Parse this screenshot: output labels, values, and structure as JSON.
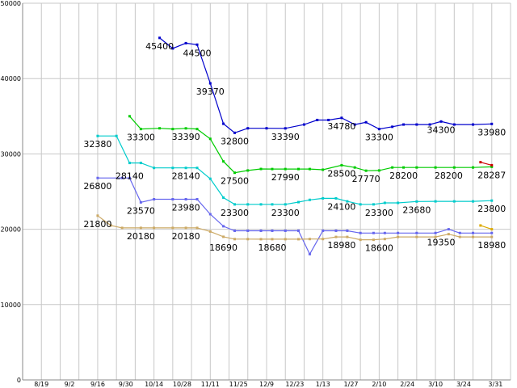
{
  "chart_data": {
    "type": "line",
    "title": "",
    "xlabel": "",
    "ylabel": "",
    "ylim": [
      0,
      50000
    ],
    "yticks": [
      0,
      10000,
      20000,
      30000,
      40000,
      50000
    ],
    "grid": true,
    "x_ticks": [
      "8/19",
      "9/2",
      "9/16",
      "9/30",
      "10/14",
      "10/28",
      "11/11",
      "11/25",
      "12/9",
      "12/23",
      "1/13",
      "1/27",
      "2/10",
      "2/24",
      "3/10",
      "3/24",
      "3/31"
    ],
    "series": [
      {
        "color": "#0000cc",
        "points": [
          [
            7.3,
            45400
          ],
          [
            8.0,
            44000
          ],
          [
            8.7,
            44700
          ],
          [
            9.3,
            44500
          ],
          [
            10.0,
            39370
          ],
          [
            10.7,
            34000
          ],
          [
            11.3,
            32800
          ],
          [
            12.0,
            33400
          ],
          [
            13.0,
            33400
          ],
          [
            14.0,
            33390
          ],
          [
            15.0,
            33900
          ],
          [
            15.7,
            34500
          ],
          [
            16.3,
            34500
          ],
          [
            17.0,
            34780
          ],
          [
            17.7,
            33900
          ],
          [
            18.3,
            34200
          ],
          [
            19.0,
            33300
          ],
          [
            19.7,
            33600
          ],
          [
            20.3,
            33900
          ],
          [
            21.0,
            33900
          ],
          [
            21.7,
            33900
          ],
          [
            22.3,
            34300
          ],
          [
            23.0,
            33900
          ],
          [
            24.0,
            33900
          ],
          [
            25.0,
            33980
          ]
        ]
      },
      {
        "color": "#00cc00",
        "points": [
          [
            5.7,
            35000
          ],
          [
            6.3,
            33300
          ],
          [
            7.3,
            33400
          ],
          [
            8.0,
            33300
          ],
          [
            8.7,
            33390
          ],
          [
            9.3,
            33300
          ],
          [
            10.0,
            32000
          ],
          [
            10.7,
            29000
          ],
          [
            11.3,
            27500
          ],
          [
            12.0,
            27800
          ],
          [
            12.7,
            28000
          ],
          [
            13.3,
            27990
          ],
          [
            14.0,
            27990
          ],
          [
            14.7,
            27990
          ],
          [
            15.3,
            27990
          ],
          [
            16.0,
            27900
          ],
          [
            17.0,
            28500
          ],
          [
            17.7,
            28200
          ],
          [
            18.3,
            27770
          ],
          [
            19.0,
            27800
          ],
          [
            19.7,
            28200
          ],
          [
            20.3,
            28200
          ],
          [
            21.0,
            28200
          ],
          [
            22.0,
            28200
          ],
          [
            23.0,
            28200
          ],
          [
            24.0,
            28200
          ],
          [
            25.0,
            28287
          ]
        ]
      },
      {
        "color": "#00cccc",
        "points": [
          [
            4.0,
            32380
          ],
          [
            5.0,
            32380
          ],
          [
            5.7,
            28800
          ],
          [
            6.3,
            28800
          ],
          [
            7.0,
            28140
          ],
          [
            8.0,
            28140
          ],
          [
            8.7,
            28140
          ],
          [
            9.3,
            28140
          ],
          [
            10.0,
            26700
          ],
          [
            10.7,
            24200
          ],
          [
            11.3,
            23300
          ],
          [
            12.0,
            23300
          ],
          [
            12.7,
            23300
          ],
          [
            13.3,
            23300
          ],
          [
            14.0,
            23300
          ],
          [
            14.7,
            23600
          ],
          [
            15.3,
            23900
          ],
          [
            16.0,
            24100
          ],
          [
            16.7,
            24100
          ],
          [
            17.3,
            23700
          ],
          [
            18.0,
            23300
          ],
          [
            18.7,
            23300
          ],
          [
            19.3,
            23500
          ],
          [
            20.0,
            23500
          ],
          [
            21.0,
            23680
          ],
          [
            22.0,
            23700
          ],
          [
            23.0,
            23700
          ],
          [
            24.0,
            23700
          ],
          [
            25.0,
            23800
          ]
        ]
      },
      {
        "color": "#6666ee",
        "points": [
          [
            4.0,
            26800
          ],
          [
            5.3,
            26800
          ],
          [
            5.7,
            26800
          ],
          [
            6.3,
            23570
          ],
          [
            7.0,
            23980
          ],
          [
            8.0,
            23980
          ],
          [
            8.7,
            23980
          ],
          [
            9.3,
            23980
          ],
          [
            10.0,
            22000
          ],
          [
            10.7,
            20400
          ],
          [
            11.3,
            19800
          ],
          [
            12.0,
            19800
          ],
          [
            12.7,
            19800
          ],
          [
            13.3,
            19800
          ],
          [
            14.0,
            19800
          ],
          [
            14.7,
            19800
          ],
          [
            15.3,
            16700
          ],
          [
            16.0,
            19800
          ],
          [
            16.7,
            19800
          ],
          [
            17.3,
            19800
          ],
          [
            18.0,
            19500
          ],
          [
            18.7,
            19500
          ],
          [
            19.3,
            19500
          ],
          [
            20.0,
            19500
          ],
          [
            21.0,
            19500
          ],
          [
            22.0,
            19500
          ],
          [
            22.7,
            20000
          ],
          [
            23.3,
            19500
          ],
          [
            24.0,
            19500
          ],
          [
            25.0,
            19500
          ]
        ]
      },
      {
        "color": "#ccaa66",
        "points": [
          [
            4.0,
            21800
          ],
          [
            4.7,
            20500
          ],
          [
            5.3,
            20180
          ],
          [
            6.3,
            20180
          ],
          [
            7.0,
            20180
          ],
          [
            8.0,
            20180
          ],
          [
            8.7,
            20180
          ],
          [
            9.3,
            20180
          ],
          [
            10.0,
            19700
          ],
          [
            10.7,
            19000
          ],
          [
            11.3,
            18690
          ],
          [
            12.0,
            18690
          ],
          [
            12.7,
            18680
          ],
          [
            13.3,
            18680
          ],
          [
            14.0,
            18680
          ],
          [
            14.7,
            18680
          ],
          [
            15.3,
            18700
          ],
          [
            16.0,
            18700
          ],
          [
            16.7,
            18980
          ],
          [
            17.3,
            18980
          ],
          [
            18.0,
            18600
          ],
          [
            18.7,
            18600
          ],
          [
            19.3,
            18700
          ],
          [
            20.0,
            18980
          ],
          [
            21.0,
            18980
          ],
          [
            22.0,
            18980
          ],
          [
            22.7,
            19350
          ],
          [
            23.3,
            18980
          ],
          [
            24.0,
            18980
          ],
          [
            25.0,
            18980
          ]
        ]
      },
      {
        "color": "#cc0000",
        "points": [
          [
            24.4,
            28900
          ],
          [
            25.0,
            28500
          ]
        ]
      },
      {
        "color": "#ddaa00",
        "points": [
          [
            24.4,
            20500
          ],
          [
            25.0,
            20000
          ]
        ]
      }
    ],
    "data_labels": [
      {
        "text": "45400",
        "x": 7.3,
        "y": 45400
      },
      {
        "text": "44500",
        "x": 9.3,
        "y": 44500
      },
      {
        "text": "39370",
        "x": 10.0,
        "y": 39370
      },
      {
        "text": "32800",
        "x": 11.3,
        "y": 32800
      },
      {
        "text": "33390",
        "x": 14.0,
        "y": 33390
      },
      {
        "text": "34780",
        "x": 17.0,
        "y": 34780
      },
      {
        "text": "33300",
        "x": 19.0,
        "y": 33300
      },
      {
        "text": "34300",
        "x": 22.3,
        "y": 34300
      },
      {
        "text": "33980",
        "x": 25.0,
        "y": 33980
      },
      {
        "text": "32380",
        "x": 4.0,
        "y": 32380
      },
      {
        "text": "33300",
        "x": 6.3,
        "y": 33300
      },
      {
        "text": "33390",
        "x": 8.7,
        "y": 33390
      },
      {
        "text": "28140",
        "x": 5.7,
        "y": 28140
      },
      {
        "text": "28140",
        "x": 8.7,
        "y": 28140
      },
      {
        "text": "27500",
        "x": 11.3,
        "y": 27500
      },
      {
        "text": "27990",
        "x": 14.0,
        "y": 27990
      },
      {
        "text": "28500",
        "x": 17.0,
        "y": 28500
      },
      {
        "text": "27770",
        "x": 18.3,
        "y": 27770
      },
      {
        "text": "28200",
        "x": 20.3,
        "y": 28200
      },
      {
        "text": "28200",
        "x": 22.7,
        "y": 28200
      },
      {
        "text": "28287",
        "x": 25.0,
        "y": 28287
      },
      {
        "text": "26800",
        "x": 4.0,
        "y": 26800
      },
      {
        "text": "23570",
        "x": 6.3,
        "y": 23570
      },
      {
        "text": "23980",
        "x": 8.7,
        "y": 23980
      },
      {
        "text": "23300",
        "x": 11.3,
        "y": 23300
      },
      {
        "text": "23300",
        "x": 14.0,
        "y": 23300
      },
      {
        "text": "24100",
        "x": 17.0,
        "y": 24100
      },
      {
        "text": "23300",
        "x": 19.0,
        "y": 23300
      },
      {
        "text": "23680",
        "x": 21.0,
        "y": 23680
      },
      {
        "text": "23800",
        "x": 25.0,
        "y": 23800
      },
      {
        "text": "21800",
        "x": 4.0,
        "y": 21800
      },
      {
        "text": "20180",
        "x": 6.3,
        "y": 20180
      },
      {
        "text": "20180",
        "x": 8.7,
        "y": 20180
      },
      {
        "text": "18690",
        "x": 10.7,
        "y": 18690
      },
      {
        "text": "18680",
        "x": 13.3,
        "y": 18680
      },
      {
        "text": "18980",
        "x": 17.0,
        "y": 18980
      },
      {
        "text": "18600",
        "x": 19.0,
        "y": 18600
      },
      {
        "text": "19350",
        "x": 22.3,
        "y": 19350
      },
      {
        "text": "18980",
        "x": 25.0,
        "y": 18980
      }
    ]
  }
}
